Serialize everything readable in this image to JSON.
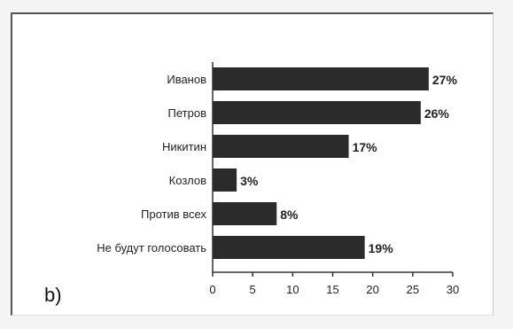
{
  "panel_label": "b)",
  "chart_data": {
    "type": "bar",
    "orientation": "horizontal",
    "categories": [
      "Иванов",
      "Петров",
      "Никитин",
      "Козлов",
      "Против всех",
      "Не будут голосовать"
    ],
    "values": [
      27,
      26,
      17,
      3,
      8,
      19
    ],
    "data_labels": [
      "27%",
      "26%",
      "17%",
      "3%",
      "8%",
      "19%"
    ],
    "xlim": [
      0,
      30
    ],
    "xticks": [
      0,
      5,
      10,
      15,
      20,
      25,
      30
    ],
    "grid": false,
    "legend": "none",
    "bar_color": "#2b2b2b"
  }
}
